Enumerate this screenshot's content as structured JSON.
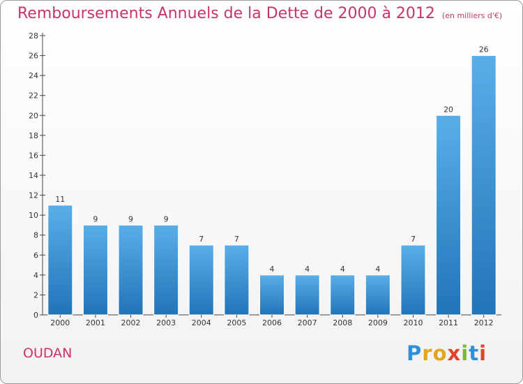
{
  "title": "Remboursements Annuels de la Dette de 2000 à 2012",
  "unit_note": "(en milliers d'€)",
  "commune": "OUDAN",
  "brand": {
    "name": "Proxiti",
    "letters": [
      "P",
      "r",
      "o",
      "x",
      "i",
      "t",
      "i"
    ],
    "colors": [
      "#2f8fd8",
      "#e2a51f",
      "#7bb63a",
      "#e0452c"
    ]
  },
  "colors": {
    "title": "#c8336b",
    "bar_top": "#5aaee8",
    "bar_bottom": "#2274b8",
    "axis": "#444444"
  },
  "chart_data": {
    "type": "bar",
    "categories": [
      "2000",
      "2001",
      "2002",
      "2003",
      "2004",
      "2005",
      "2006",
      "2007",
      "2008",
      "2009",
      "2010",
      "2011",
      "2012"
    ],
    "values": [
      11,
      9,
      9,
      9,
      7,
      7,
      4,
      4,
      4,
      4,
      7,
      20,
      26
    ],
    "data_labels": [
      "11",
      "9",
      "9",
      "9",
      "7",
      "7",
      "4",
      "4",
      "4",
      "4",
      "7",
      "20",
      "26"
    ],
    "ylim": [
      0,
      28
    ],
    "yticks": [
      0,
      2,
      4,
      6,
      8,
      10,
      12,
      14,
      16,
      18,
      20,
      22,
      24,
      26,
      28
    ],
    "title": "Remboursements Annuels de la Dette de 2000 à 2012",
    "xlabel": "",
    "ylabel": "",
    "grid": false,
    "legend": "none"
  }
}
